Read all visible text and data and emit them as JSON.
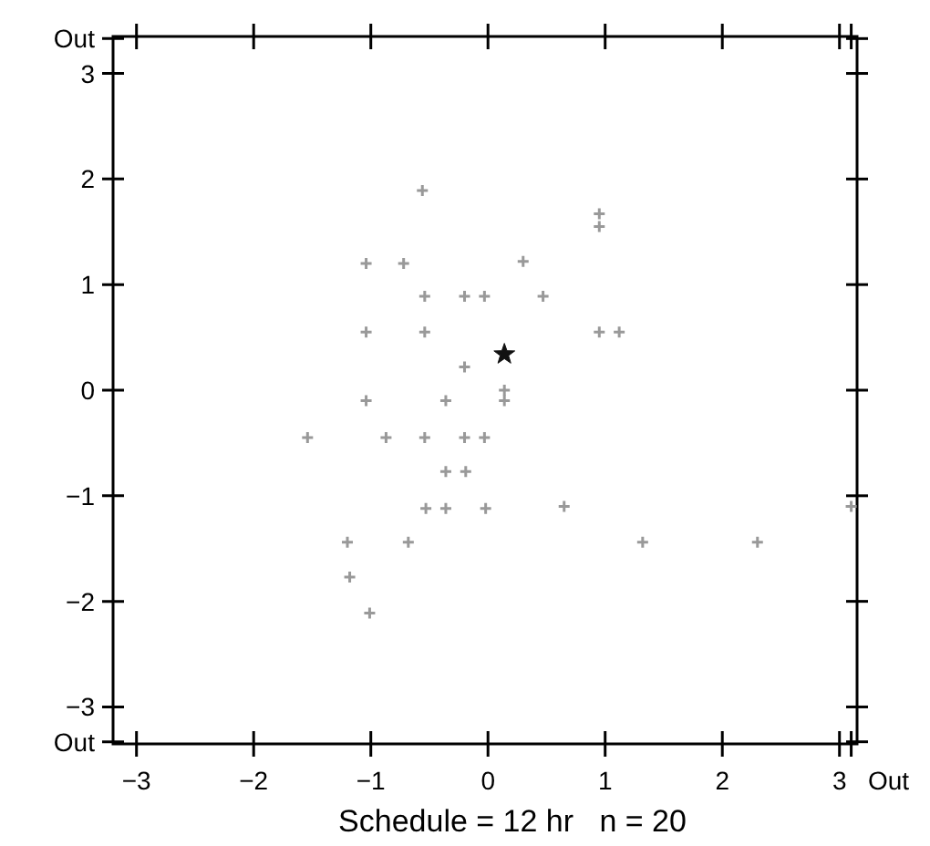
{
  "chart_data": {
    "type": "scatter",
    "xlabel": "Schedule = 12 hr   n = 20",
    "xlim": [
      -3.2,
      3.15
    ],
    "ylim": [
      -3.35,
      3.35
    ],
    "xticks": [
      -3,
      -2,
      -1,
      0,
      1,
      2,
      3,
      {
        "value": 3.1,
        "label": null
      }
    ],
    "annotations": [
      "Out"
    ],
    "yticks": [
      {
        "value": -3.33,
        "label": "Out"
      },
      -3,
      -2,
      -1,
      0,
      1,
      2,
      3,
      {
        "value": 3.33,
        "label": "Out"
      }
    ],
    "grid": false,
    "series": [
      {
        "color": "#999999",
        "marker": "cross",
        "x": [
          -0.56,
          0.95,
          0.95,
          -1.04,
          -0.72,
          0.3,
          -0.54,
          -0.2,
          -0.03,
          0.47,
          -1.04,
          -0.54,
          0.95,
          1.12,
          -0.2,
          0.14,
          0.14,
          -1.04,
          -0.36,
          -1.54,
          -0.87,
          -0.54,
          -0.2,
          -0.03,
          -0.36,
          -0.19,
          -0.53,
          -0.36,
          -0.02,
          0.65,
          3.1,
          -1.2,
          -0.68,
          1.32,
          2.3,
          -1.18,
          -1.01
        ],
        "values": [
          1.89,
          1.67,
          1.55,
          1.2,
          1.2,
          1.22,
          0.89,
          0.89,
          0.89,
          0.89,
          0.55,
          0.55,
          0.55,
          0.55,
          0.22,
          0.0,
          -0.1,
          -0.1,
          -0.1,
          -0.45,
          -0.45,
          -0.45,
          -0.45,
          -0.45,
          -0.77,
          -0.77,
          -1.12,
          -1.12,
          -1.12,
          -1.1,
          -1.1,
          -1.44,
          -1.44,
          -1.44,
          -1.44,
          -1.77,
          -2.11
        ]
      },
      {
        "color": "#111111",
        "marker": "star",
        "x": [
          0.14
        ],
        "values": [
          0.34
        ]
      }
    ]
  }
}
